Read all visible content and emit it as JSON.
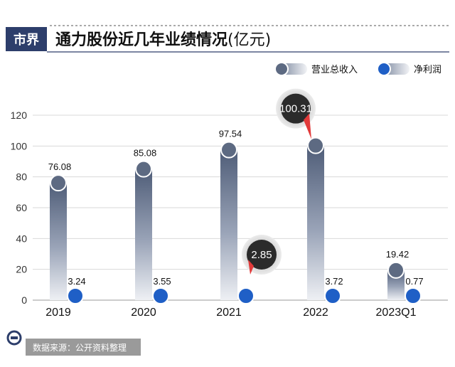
{
  "header": {
    "logo": "市界",
    "title": "通力股份近几年业绩情况",
    "unit": "(亿元)"
  },
  "legend": {
    "revenue_label": "营业总收入",
    "profit_label": "净利润"
  },
  "source": "数据来源：公开资料整理",
  "chart_data": {
    "type": "bar",
    "title": "通力股份近几年业绩情况(亿元)",
    "categories": [
      "2019",
      "2020",
      "2021",
      "2022",
      "2023Q1"
    ],
    "series": [
      {
        "name": "营业总收入",
        "values": [
          76.08,
          85.08,
          97.54,
          100.31,
          19.42
        ],
        "labels": [
          "76.08",
          "85.08",
          "97.54",
          "100.31",
          "19.42"
        ]
      },
      {
        "name": "净利润",
        "values": [
          3.24,
          3.55,
          2.85,
          3.72,
          0.77
        ],
        "labels": [
          "3.24",
          "3.55",
          "2.85",
          "3.72",
          "0.77"
        ]
      }
    ],
    "callouts": [
      {
        "series": 0,
        "index": 3
      },
      {
        "series": 1,
        "index": 2
      }
    ],
    "yticks": [
      "0",
      "20",
      "40",
      "60",
      "80",
      "100",
      "120"
    ],
    "ylim": [
      0,
      120
    ],
    "grid": true,
    "legend_position": "top-right",
    "colors": {
      "revenue_dot": "#5d6a82",
      "profit_dot": "#1f5fc6",
      "callout": "#2b2b2b",
      "callout_pointer": "#e23a3a",
      "grid": "#d9d9d9"
    }
  }
}
